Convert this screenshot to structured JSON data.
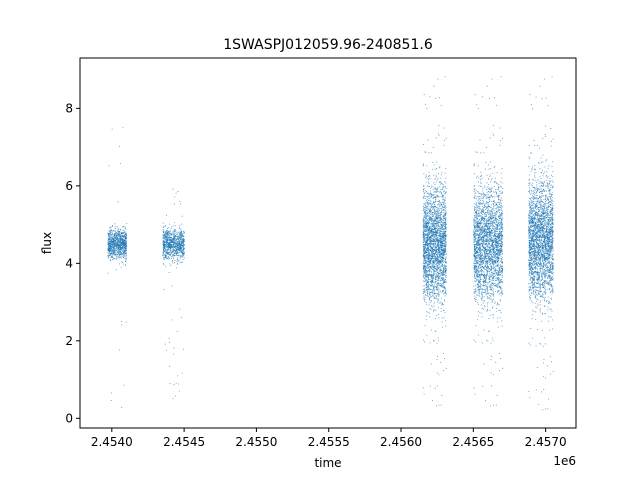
{
  "chart_data": {
    "type": "scatter",
    "title": "1SWASPJ012059.96-240851.6",
    "xlabel": "time",
    "ylabel": "flux",
    "x_offset_label": "1e6",
    "xlim": [
      2453730,
      2457160
    ],
    "ylim": [
      -0.25,
      9.3
    ],
    "x_ticks": [
      {
        "value": 2453950,
        "label": "2.4540"
      },
      {
        "value": 2454450,
        "label": "2.4545"
      },
      {
        "value": 2454950,
        "label": "2.4550"
      },
      {
        "value": 2455450,
        "label": "2.4555"
      },
      {
        "value": 2455950,
        "label": "2.4560"
      },
      {
        "value": 2456450,
        "label": "2.4565"
      },
      {
        "value": 2456950,
        "label": "2.4570"
      }
    ],
    "y_ticks": [
      {
        "value": 0,
        "label": "0"
      },
      {
        "value": 2,
        "label": "2"
      },
      {
        "value": 4,
        "label": "4"
      },
      {
        "value": 6,
        "label": "6"
      },
      {
        "value": 8,
        "label": "8"
      }
    ],
    "grid": false,
    "marker_color": "#1f77b4",
    "observing_seasons": [
      {
        "x_start": 2453920,
        "x_end": 2454050,
        "median_flux": 4.5,
        "core_spread": 0.35,
        "outlier_range": [
          0.2,
          7.7
        ],
        "density": 900
      },
      {
        "x_start": 2454300,
        "x_end": 2454450,
        "median_flux": 4.5,
        "core_spread": 0.35,
        "outlier_range": [
          0.5,
          6.1
        ],
        "density": 900
      },
      {
        "x_start": 2456100,
        "x_end": 2456260,
        "median_flux": 4.5,
        "core_spread": 1.3,
        "outlier_range": [
          0.2,
          8.85
        ],
        "density": 2600
      },
      {
        "x_start": 2456450,
        "x_end": 2456650,
        "median_flux": 4.5,
        "core_spread": 1.3,
        "outlier_range": [
          0.2,
          8.85
        ],
        "density": 2600
      },
      {
        "x_start": 2456830,
        "x_end": 2457000,
        "median_flux": 4.6,
        "core_spread": 1.35,
        "outlier_range": [
          0.1,
          8.85
        ],
        "density": 2600
      }
    ]
  }
}
